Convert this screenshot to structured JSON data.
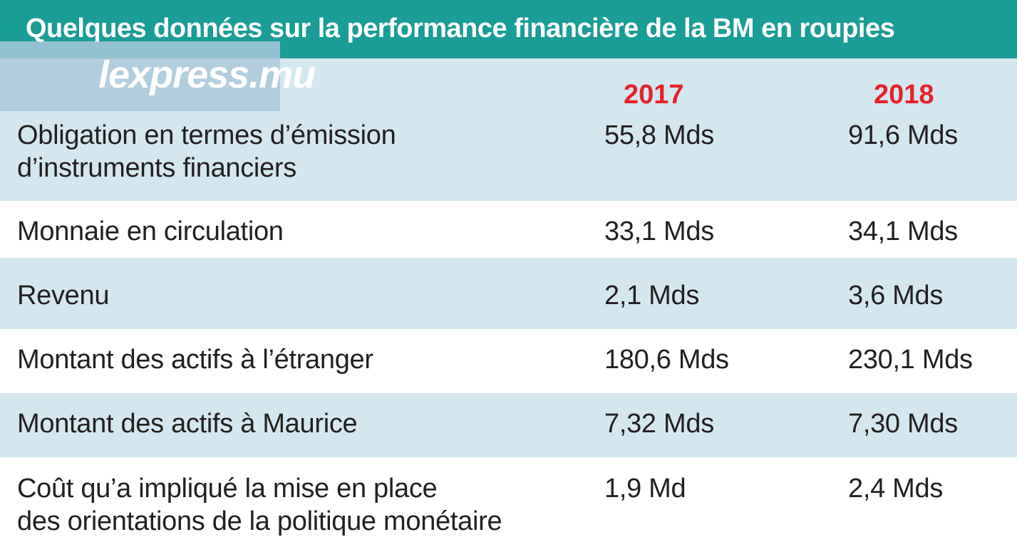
{
  "title": "Quelques données sur la performance financière de la BM en roupies",
  "watermark": "lexpress.mu",
  "chart_data": {
    "type": "table",
    "columns": [
      "2017",
      "2018"
    ],
    "rows": [
      {
        "label_lines": [
          "Obligation en termes d’émission",
          "d’instruments financiers"
        ],
        "values": [
          "55,8 Mds",
          "91,6 Mds"
        ]
      },
      {
        "label_lines": [
          "Monnaie en circulation"
        ],
        "values": [
          "33,1 Mds",
          "34,1 Mds"
        ]
      },
      {
        "label_lines": [
          "Revenu"
        ],
        "values": [
          "2,1 Mds",
          "3,6 Mds"
        ]
      },
      {
        "label_lines": [
          "Montant des actifs à l’étranger"
        ],
        "values": [
          "180,6 Mds",
          "230,1 Mds"
        ]
      },
      {
        "label_lines": [
          "Montant des actifs  à Maurice"
        ],
        "values": [
          "7,32 Mds",
          "7,30 Mds"
        ]
      },
      {
        "label_lines": [
          "Coût qu’a impliqué  la mise en place",
          "des orientations de la politique monétaire"
        ],
        "values": [
          "1,9 Md",
          "2,4 Mds"
        ]
      }
    ]
  }
}
